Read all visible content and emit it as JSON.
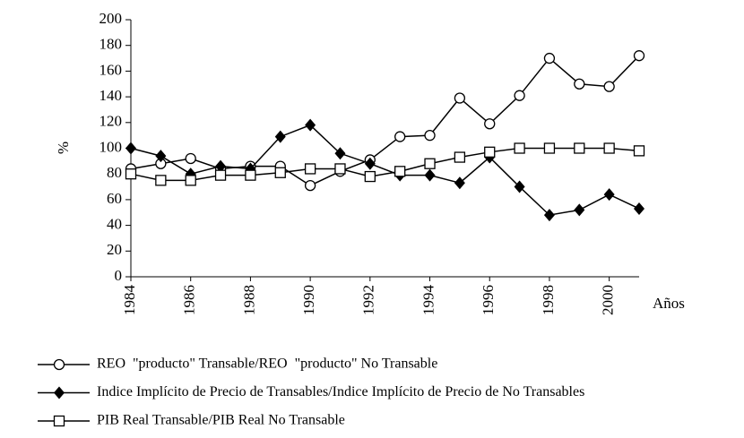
{
  "chart_data": {
    "type": "line",
    "y_label": "%",
    "x_label": "Años",
    "x": [
      1984,
      1985,
      1986,
      1987,
      1988,
      1989,
      1990,
      1991,
      1992,
      1993,
      1994,
      1995,
      1996,
      1997,
      1998,
      1999,
      2000,
      2001
    ],
    "xlim": [
      1984,
      2001
    ],
    "xticks": [
      1984,
      1986,
      1988,
      1990,
      1992,
      1994,
      1996,
      1998,
      2000
    ],
    "ylim": [
      0,
      200
    ],
    "yticks": [
      0,
      20,
      40,
      60,
      80,
      100,
      120,
      140,
      160,
      180,
      200
    ],
    "grid": false,
    "legend": "bottom",
    "series": [
      {
        "name": "REO  \"producto\" Transable/REO  \"producto\" No Transable",
        "color": "#000000",
        "marker": "circle",
        "values": [
          84,
          88,
          92,
          84,
          86,
          86,
          71,
          82,
          91,
          109,
          110,
          139,
          119,
          141,
          170,
          150,
          148,
          172
        ]
      },
      {
        "name": "Indice Implícito de Precio de Transables/Indice Implícito de Precio de No Transables",
        "color": "#000000",
        "marker": "diamond",
        "values": [
          100,
          94,
          80,
          86,
          84,
          109,
          118,
          96,
          88,
          79,
          79,
          73,
          93,
          70,
          48,
          52,
          64,
          53
        ]
      },
      {
        "name": "PIB Real Transable/PIB Real No Transable",
        "color": "#000000",
        "marker": "square",
        "values": [
          80,
          75,
          75,
          79,
          79,
          81,
          84,
          84,
          78,
          82,
          88,
          93,
          97,
          100,
          100,
          100,
          100,
          98
        ]
      }
    ]
  }
}
